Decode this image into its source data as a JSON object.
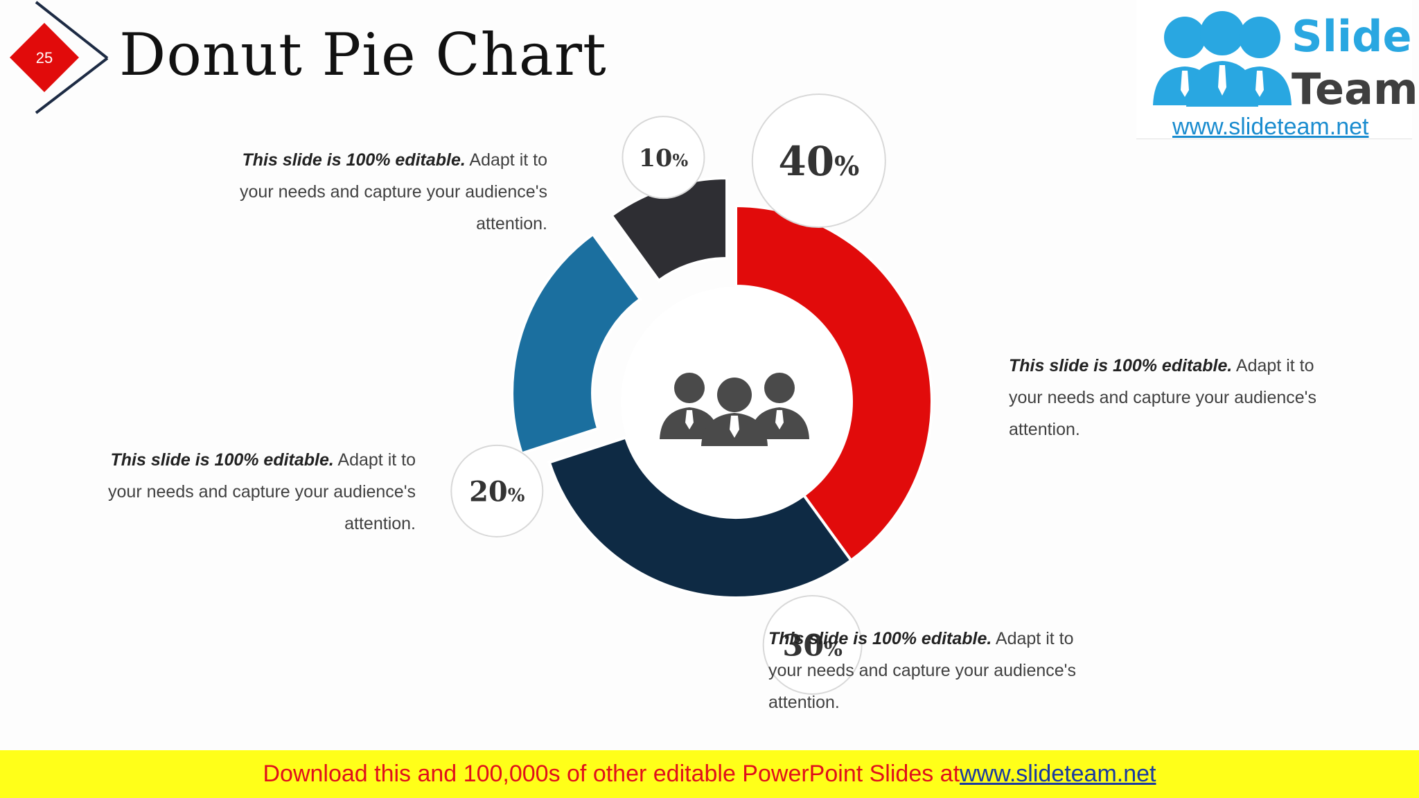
{
  "slide": {
    "number": "25",
    "title": "Donut Pie Chart"
  },
  "logo": {
    "word1": "Slide",
    "word2": "Team",
    "url": "www.slideteam.net"
  },
  "colors": {
    "red": "#e10b0b",
    "navy": "#0e2a44",
    "blue": "#1b6f9f",
    "dark": "#2e2e33",
    "accent_badge": "#e10b0b",
    "footer_bg": "#ffff19"
  },
  "notes": [
    {
      "bold": "This slide is 100% editable.",
      "rest": " Adapt it to your needs and capture your audience's attention."
    },
    {
      "bold": "This slide is 100% editable.",
      "rest": " Adapt it to your needs and capture your audience's attention."
    },
    {
      "bold": "This slide is 100% editable.",
      "rest": " Adapt it to your needs and capture your audience's attention."
    },
    {
      "bold": "This slide is 100% editable.",
      "rest": " Adapt it to your needs and capture your audience's attention."
    }
  ],
  "center_icon": "people-group-icon",
  "chart_data": {
    "type": "pie",
    "variant": "donut",
    "title": "",
    "slices": [
      {
        "label": "40",
        "value": 40,
        "unit": "%",
        "color": "#e10b0b"
      },
      {
        "label": "30",
        "value": 30,
        "unit": "%",
        "color": "#0e2a44"
      },
      {
        "label": "20",
        "value": 20,
        "unit": "%",
        "color": "#1b6f9f",
        "exploded": true
      },
      {
        "label": "10",
        "value": 10,
        "unit": "%",
        "color": "#2e2e33",
        "exploded": true
      }
    ]
  },
  "footer": {
    "text": "Download this and 100,000s of other editable PowerPoint Slides at ",
    "link": "www.slideteam.net"
  }
}
